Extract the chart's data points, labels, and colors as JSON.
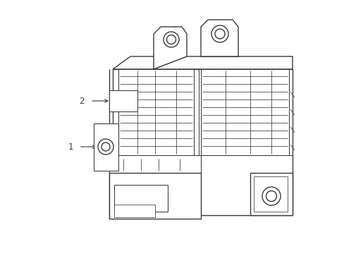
{
  "bg_color": "#ffffff",
  "line_color": "#3a3a3a",
  "lw_main": 1.0,
  "lw_thin": 0.55,
  "lw_med": 0.75,
  "label1": "1",
  "label2": "2",
  "figsize": [
    4.89,
    3.6
  ],
  "dpi": 100
}
